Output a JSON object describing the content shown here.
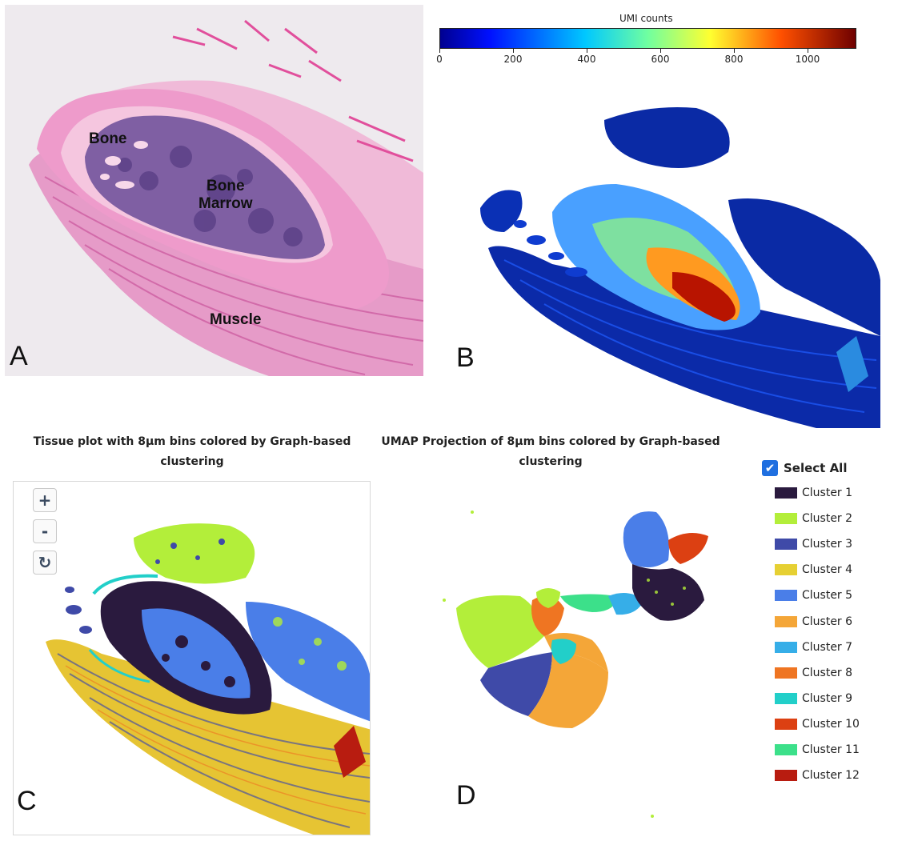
{
  "panel_a": {
    "letter": "A",
    "labels": {
      "bone": "Bone",
      "bone_marrow": "Bone\nMarrow",
      "muscle": "Muscle"
    }
  },
  "panel_b": {
    "letter": "B",
    "colorbar": {
      "title": "UMI counts",
      "ticks": [
        "0",
        "200",
        "400",
        "600",
        "800",
        "1000"
      ]
    }
  },
  "panel_c": {
    "letter": "C",
    "title": "Tissue plot with 8µm bins colored by Graph-based clustering",
    "zoom_in": "+",
    "zoom_out": "-",
    "reset": "↻"
  },
  "panel_d": {
    "letter": "D",
    "title": "UMAP Projection of 8µm bins colored by Graph-based clustering"
  },
  "legend": {
    "select_all": "Select All",
    "clusters": [
      {
        "label": "Cluster 1",
        "color": "#2a1a3e"
      },
      {
        "label": "Cluster 2",
        "color": "#b3ee3a"
      },
      {
        "label": "Cluster 3",
        "color": "#3f4aa8"
      },
      {
        "label": "Cluster 4",
        "color": "#e6d033"
      },
      {
        "label": "Cluster 5",
        "color": "#4a7ee8"
      },
      {
        "label": "Cluster 6",
        "color": "#f4a638"
      },
      {
        "label": "Cluster 7",
        "color": "#36aee8"
      },
      {
        "label": "Cluster 8",
        "color": "#ef7522"
      },
      {
        "label": "Cluster 9",
        "color": "#22cfc9"
      },
      {
        "label": "Cluster 10",
        "color": "#dc4012"
      },
      {
        "label": "Cluster 11",
        "color": "#3ce08a"
      },
      {
        "label": "Cluster 12",
        "color": "#b81c10"
      }
    ]
  }
}
